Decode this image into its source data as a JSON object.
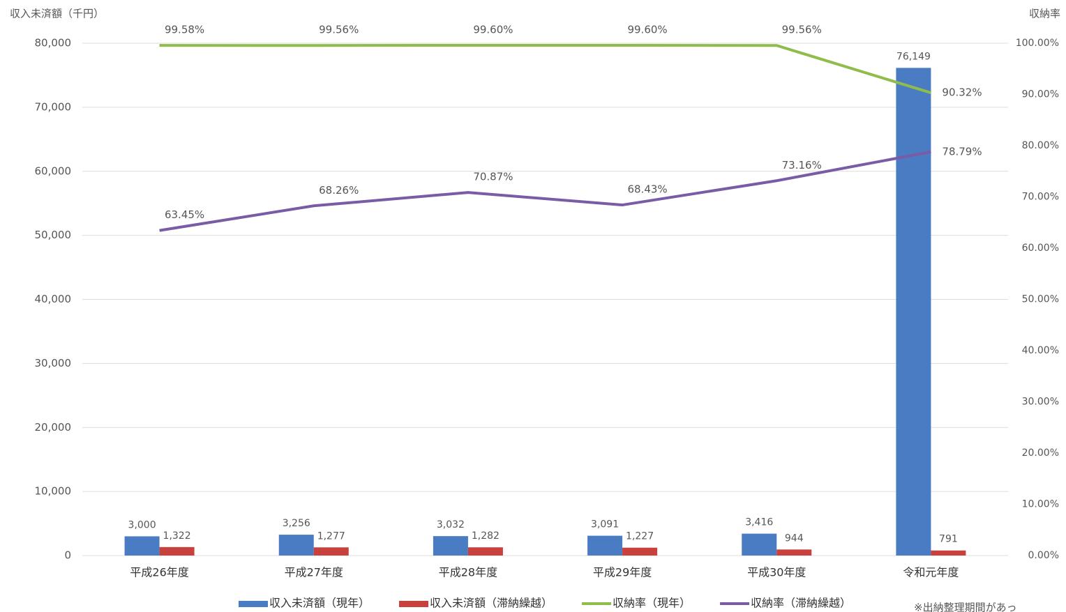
{
  "chart_data": {
    "type": "combo",
    "y_label": "収入未済額（千円）",
    "y2_label": "収納率",
    "categories": [
      "平成26年度",
      "平成27年度",
      "平成28年度",
      "平成29年度",
      "平成30年度",
      "令和元年度"
    ],
    "series": [
      {
        "name": "収入未済額（現年）",
        "type": "bar",
        "color": "#4a7cc4",
        "values": [
          3000,
          3256,
          3032,
          3091,
          3416,
          76149
        ],
        "value_labels": [
          "3,000",
          "3,256",
          "3,032",
          "3,091",
          "3,416",
          "76,149"
        ]
      },
      {
        "name": "収入未済額（滞納繰越）",
        "type": "bar",
        "color": "#c8413d",
        "values": [
          1322,
          1277,
          1282,
          1227,
          944,
          791
        ],
        "value_labels": [
          "1,322",
          "1,277",
          "1,282",
          "1,227",
          "944",
          "791"
        ]
      },
      {
        "name": "収納率（現年）",
        "type": "line",
        "axis": "y2",
        "color": "#8fbc4a",
        "values": [
          99.58,
          99.56,
          99.6,
          99.6,
          99.56,
          90.32
        ],
        "value_labels": [
          "99.58%",
          "99.56%",
          "99.60%",
          "99.60%",
          "99.56%",
          "90.32%"
        ]
      },
      {
        "name": "収納率（滞納繰越）",
        "type": "line",
        "axis": "y2",
        "color": "#7a5ba6",
        "values": [
          63.45,
          68.26,
          70.87,
          68.43,
          73.16,
          78.79
        ],
        "value_labels": [
          "63.45%",
          "68.26%",
          "70.87%",
          "68.43%",
          "73.16%",
          "78.79%"
        ]
      }
    ],
    "ylim": [
      0,
      80000
    ],
    "yticks": [
      0,
      {
        "value": 10000,
        "label": "10,000"
      },
      {
        "value": 20000,
        "label": "20,000"
      },
      {
        "value": 30000,
        "label": "30,000"
      },
      {
        "value": 40000,
        "label": "40,000"
      },
      {
        "value": 50000,
        "label": "50,000"
      },
      {
        "value": 60000,
        "label": "60,000"
      },
      {
        "value": 70000,
        "label": "70,000"
      },
      {
        "value": 80000,
        "label": "80,000"
      }
    ],
    "y2lim": [
      0,
      100
    ],
    "y2ticks": [
      {
        "value": 0,
        "label": "0.00%"
      },
      {
        "value": 10,
        "label": "10.00%"
      },
      {
        "value": 20,
        "label": "20.00%"
      },
      {
        "value": 30,
        "label": "30.00%"
      },
      {
        "value": 40,
        "label": "40.00%"
      },
      {
        "value": 50,
        "label": "50.00%"
      },
      {
        "value": 60,
        "label": "60.00%"
      },
      {
        "value": 70,
        "label": "70.00%"
      },
      {
        "value": 80,
        "label": "80.00%"
      },
      {
        "value": 90,
        "label": "90.00%"
      },
      {
        "value": 100,
        "label": "100.00%"
      }
    ],
    "grid": true,
    "legend": "bottom",
    "note": "※出納整理期間があっ"
  }
}
